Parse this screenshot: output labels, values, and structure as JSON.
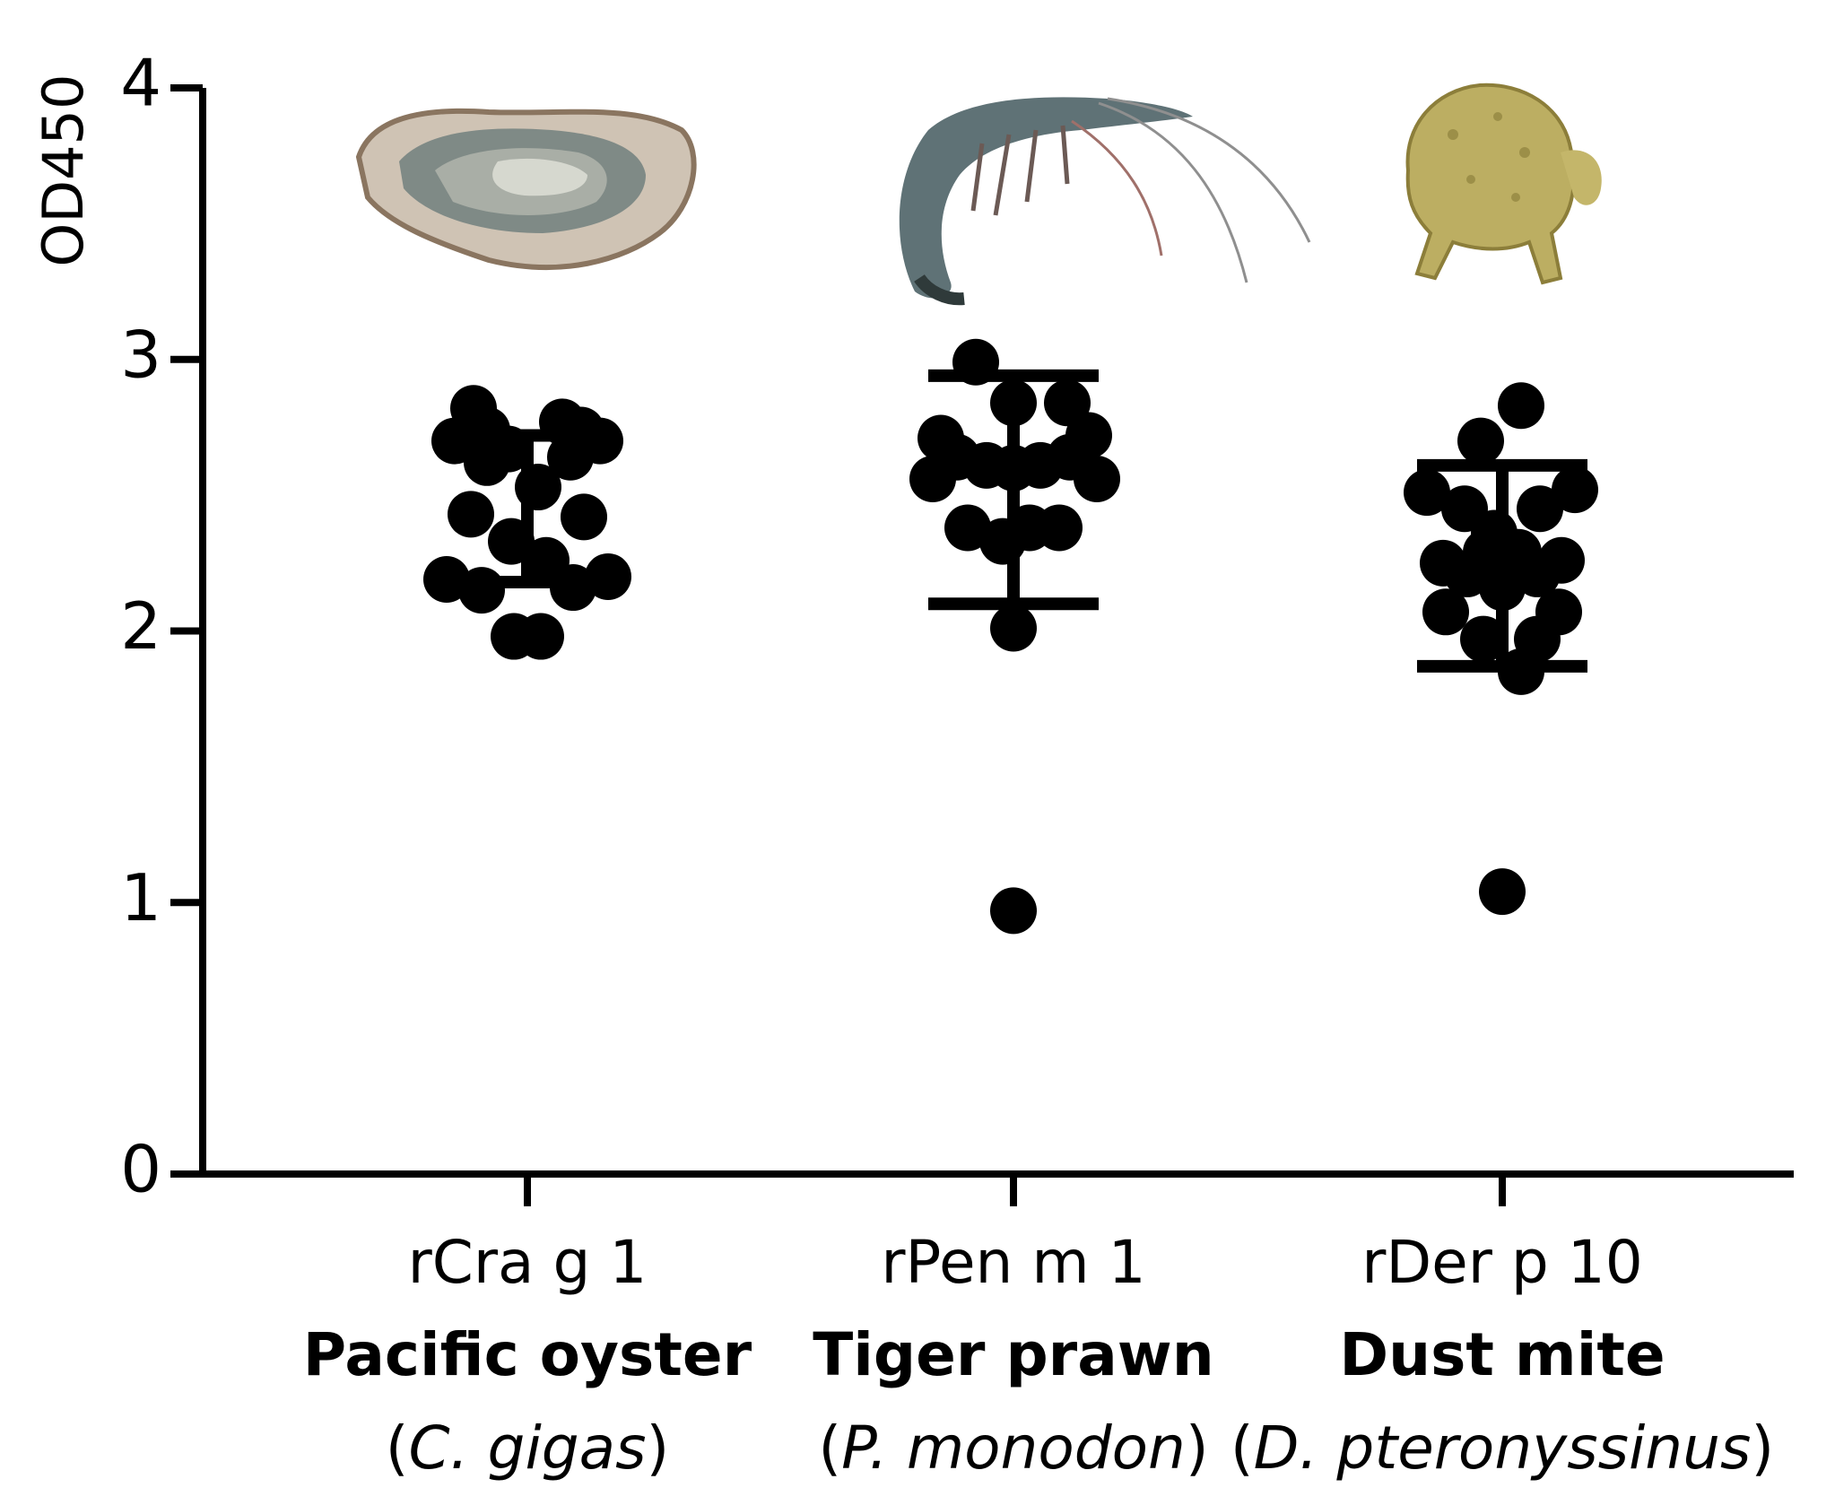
{
  "chart_data": {
    "type": "scatter",
    "ylabel": "OD450",
    "xlabel": "",
    "ylim": [
      0,
      4
    ],
    "yticks": [
      0,
      1,
      2,
      3,
      4
    ],
    "grid": false,
    "legend": "none",
    "marker_color": "#000000",
    "groups": [
      {
        "code": "rCra g 1",
        "common_name": "Pacific oyster",
        "sci_open": "(",
        "sci_name": "C. gigas",
        "sci_close": ")",
        "icon": "oyster-icon",
        "mean": 2.45,
        "sd_upper": 2.72,
        "sd_lower": 2.18,
        "points": [
          {
            "dx": -0.2,
            "y": 2.82
          },
          {
            "dx": 0.13,
            "y": 2.77
          },
          {
            "dx": -0.15,
            "y": 2.74
          },
          {
            "dx": 0.2,
            "y": 2.74
          },
          {
            "dx": -0.27,
            "y": 2.7
          },
          {
            "dx": 0.27,
            "y": 2.7
          },
          {
            "dx": -0.07,
            "y": 2.67
          },
          {
            "dx": 0.16,
            "y": 2.64
          },
          {
            "dx": -0.15,
            "y": 2.62
          },
          {
            "dx": 0.04,
            "y": 2.53
          },
          {
            "dx": -0.21,
            "y": 2.43
          },
          {
            "dx": 0.21,
            "y": 2.42
          },
          {
            "dx": -0.06,
            "y": 2.33
          },
          {
            "dx": 0.07,
            "y": 2.26
          },
          {
            "dx": -0.3,
            "y": 2.19
          },
          {
            "dx": 0.3,
            "y": 2.2
          },
          {
            "dx": -0.17,
            "y": 2.15
          },
          {
            "dx": 0.17,
            "y": 2.16
          },
          {
            "dx": -0.05,
            "y": 1.98
          },
          {
            "dx": 0.05,
            "y": 1.98
          }
        ]
      },
      {
        "code": "rPen m 1",
        "common_name": "Tiger prawn",
        "sci_open": "(",
        "sci_name": "P. monodon",
        "sci_close": ")",
        "icon": "prawn-icon",
        "mean": 2.52,
        "sd_upper": 2.94,
        "sd_lower": 2.1,
        "points": [
          {
            "dx": -0.14,
            "y": 2.99
          },
          {
            "dx": 0.0,
            "y": 2.84
          },
          {
            "dx": 0.2,
            "y": 2.84
          },
          {
            "dx": -0.27,
            "y": 2.71
          },
          {
            "dx": 0.28,
            "y": 2.72
          },
          {
            "dx": -0.21,
            "y": 2.64
          },
          {
            "dx": -0.1,
            "y": 2.61
          },
          {
            "dx": 0.0,
            "y": 2.6
          },
          {
            "dx": 0.1,
            "y": 2.61
          },
          {
            "dx": 0.21,
            "y": 2.64
          },
          {
            "dx": -0.3,
            "y": 2.56
          },
          {
            "dx": 0.31,
            "y": 2.56
          },
          {
            "dx": -0.17,
            "y": 2.38
          },
          {
            "dx": 0.17,
            "y": 2.38
          },
          {
            "dx": -0.04,
            "y": 2.33
          },
          {
            "dx": 0.06,
            "y": 2.38
          },
          {
            "dx": 0.0,
            "y": 2.01
          },
          {
            "dx": 0.0,
            "y": 0.97
          }
        ]
      },
      {
        "code": "rDer p 10",
        "common_name": "Dust mite",
        "sci_open": "(",
        "sci_name": "D. pteronyssinus",
        "sci_close": ")",
        "icon": "dust-mite-icon",
        "mean": 2.24,
        "sd_upper": 2.61,
        "sd_lower": 1.87,
        "points": [
          {
            "dx": 0.07,
            "y": 2.83
          },
          {
            "dx": -0.08,
            "y": 2.7
          },
          {
            "dx": -0.28,
            "y": 2.51
          },
          {
            "dx": 0.27,
            "y": 2.52
          },
          {
            "dx": -0.14,
            "y": 2.45
          },
          {
            "dx": 0.14,
            "y": 2.45
          },
          {
            "dx": -0.03,
            "y": 2.36
          },
          {
            "dx": -0.06,
            "y": 2.29
          },
          {
            "dx": 0.06,
            "y": 2.29
          },
          {
            "dx": -0.22,
            "y": 2.25
          },
          {
            "dx": 0.22,
            "y": 2.26
          },
          {
            "dx": -0.13,
            "y": 2.21
          },
          {
            "dx": 0.13,
            "y": 2.21
          },
          {
            "dx": 0.0,
            "y": 2.16
          },
          {
            "dx": -0.21,
            "y": 2.07
          },
          {
            "dx": 0.21,
            "y": 2.07
          },
          {
            "dx": -0.07,
            "y": 1.97
          },
          {
            "dx": 0.13,
            "y": 1.97
          },
          {
            "dx": 0.07,
            "y": 1.85
          },
          {
            "dx": 0.0,
            "y": 1.04
          }
        ]
      }
    ]
  }
}
